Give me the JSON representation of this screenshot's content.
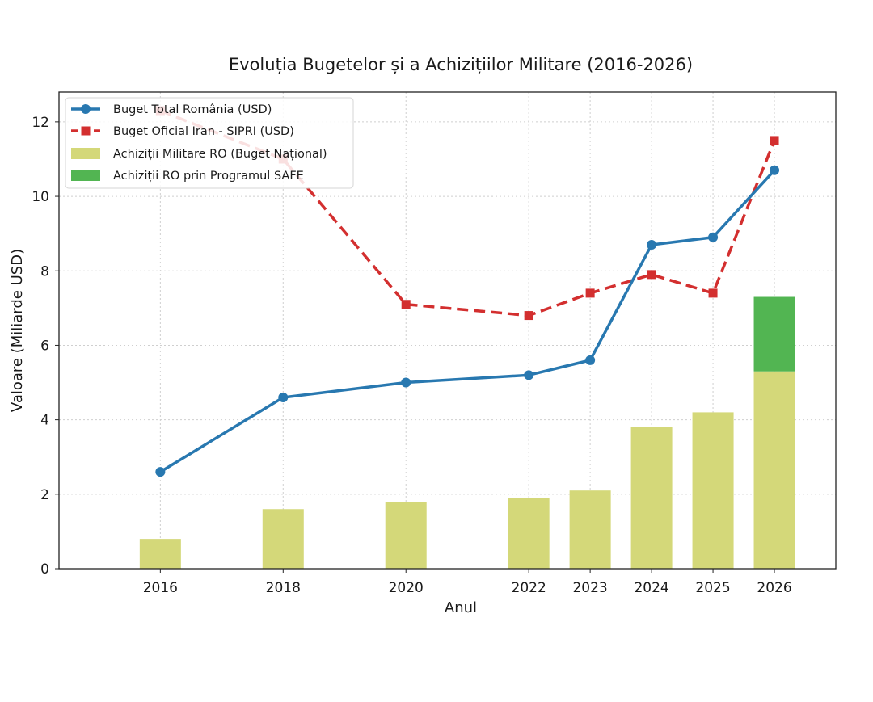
{
  "chart_data": {
    "type": "bar+line",
    "title": "Evoluția Bugetelor și a Achizițiilor Militare (2016-2026)",
    "xlabel": "Anul",
    "ylabel": "Valoare (Miliarde USD)",
    "categories": [
      "2016",
      "2018",
      "2020",
      "2022",
      "2023",
      "2024",
      "2025",
      "2026"
    ],
    "x": [
      2016,
      2018,
      2020,
      2022,
      2023,
      2024,
      2025,
      2026
    ],
    "xlim": [
      2014.35,
      2027.0
    ],
    "ylim": [
      0,
      12.8
    ],
    "yticks": [
      0,
      2,
      4,
      6,
      8,
      10,
      12
    ],
    "grid": true,
    "legend_position": "top-left",
    "series": [
      {
        "name": "Buget Total România (USD)",
        "type": "line",
        "style": "solid",
        "marker": "circle",
        "color": "#2878b0",
        "x": [
          2016,
          2018,
          2020,
          2022,
          2023,
          2024,
          2025,
          2026
        ],
        "values": [
          2.6,
          4.6,
          5.0,
          5.2,
          5.6,
          8.7,
          8.9,
          10.7
        ]
      },
      {
        "name": "Buget Oficial Iran - SIPRI (USD)",
        "type": "line",
        "style": "dashed",
        "marker": "square",
        "color": "#d32f2f",
        "x": [
          2016,
          2018,
          2020,
          2022,
          2023,
          2024,
          2025,
          2026
        ],
        "values": [
          12.3,
          11.0,
          7.1,
          6.8,
          7.4,
          7.9,
          7.4,
          11.5
        ]
      },
      {
        "name": "Achiziții Militare RO (Buget Național)",
        "type": "bar",
        "color": "#d4d879",
        "x": [
          2016,
          2018,
          2020,
          2022,
          2023,
          2024,
          2025,
          2026
        ],
        "values": [
          0.8,
          1.6,
          1.8,
          1.9,
          2.1,
          3.8,
          4.2,
          5.3
        ]
      },
      {
        "name": "Achiziții RO prin Programul SAFE",
        "type": "bar",
        "stacked": true,
        "color": "#52b552",
        "x": [
          2026
        ],
        "values": [
          2.0
        ]
      }
    ]
  }
}
